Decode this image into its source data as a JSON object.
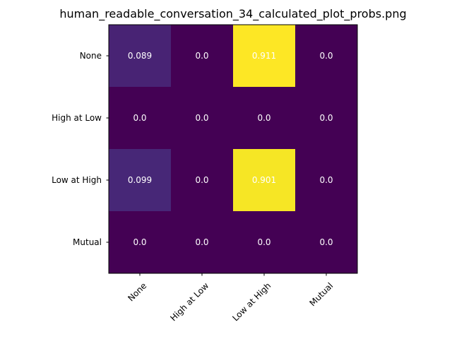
{
  "chart_data": {
    "type": "heatmap",
    "title": "human_readable_conversation_34_calculated_plot_probs.png",
    "xlabel": "",
    "ylabel": "",
    "x_categories": [
      "None",
      "High at Low",
      "Low at High",
      "Mutual"
    ],
    "y_categories": [
      "None",
      "High at Low",
      "Low at High",
      "Mutual"
    ],
    "values": [
      [
        0.089,
        0.0,
        0.911,
        0.0
      ],
      [
        0.0,
        0.0,
        0.0,
        0.0
      ],
      [
        0.099,
        0.0,
        0.901,
        0.0
      ],
      [
        0.0,
        0.0,
        0.0,
        0.0
      ]
    ],
    "cell_labels": [
      [
        "0.089",
        "0.0",
        "0.911",
        "0.0"
      ],
      [
        "0.0",
        "0.0",
        "0.0",
        "0.0"
      ],
      [
        "0.099",
        "0.0",
        "0.901",
        "0.0"
      ],
      [
        "0.0",
        "0.0",
        "0.0",
        "0.0"
      ]
    ],
    "colormap": "viridis",
    "low_color": "#440154",
    "high_color": "#fde725",
    "label_color_on_dark": "#ffffff",
    "label_color_on_light": "#000000",
    "grid": false,
    "legend": "none",
    "x_tick_rotation_deg": 45
  }
}
